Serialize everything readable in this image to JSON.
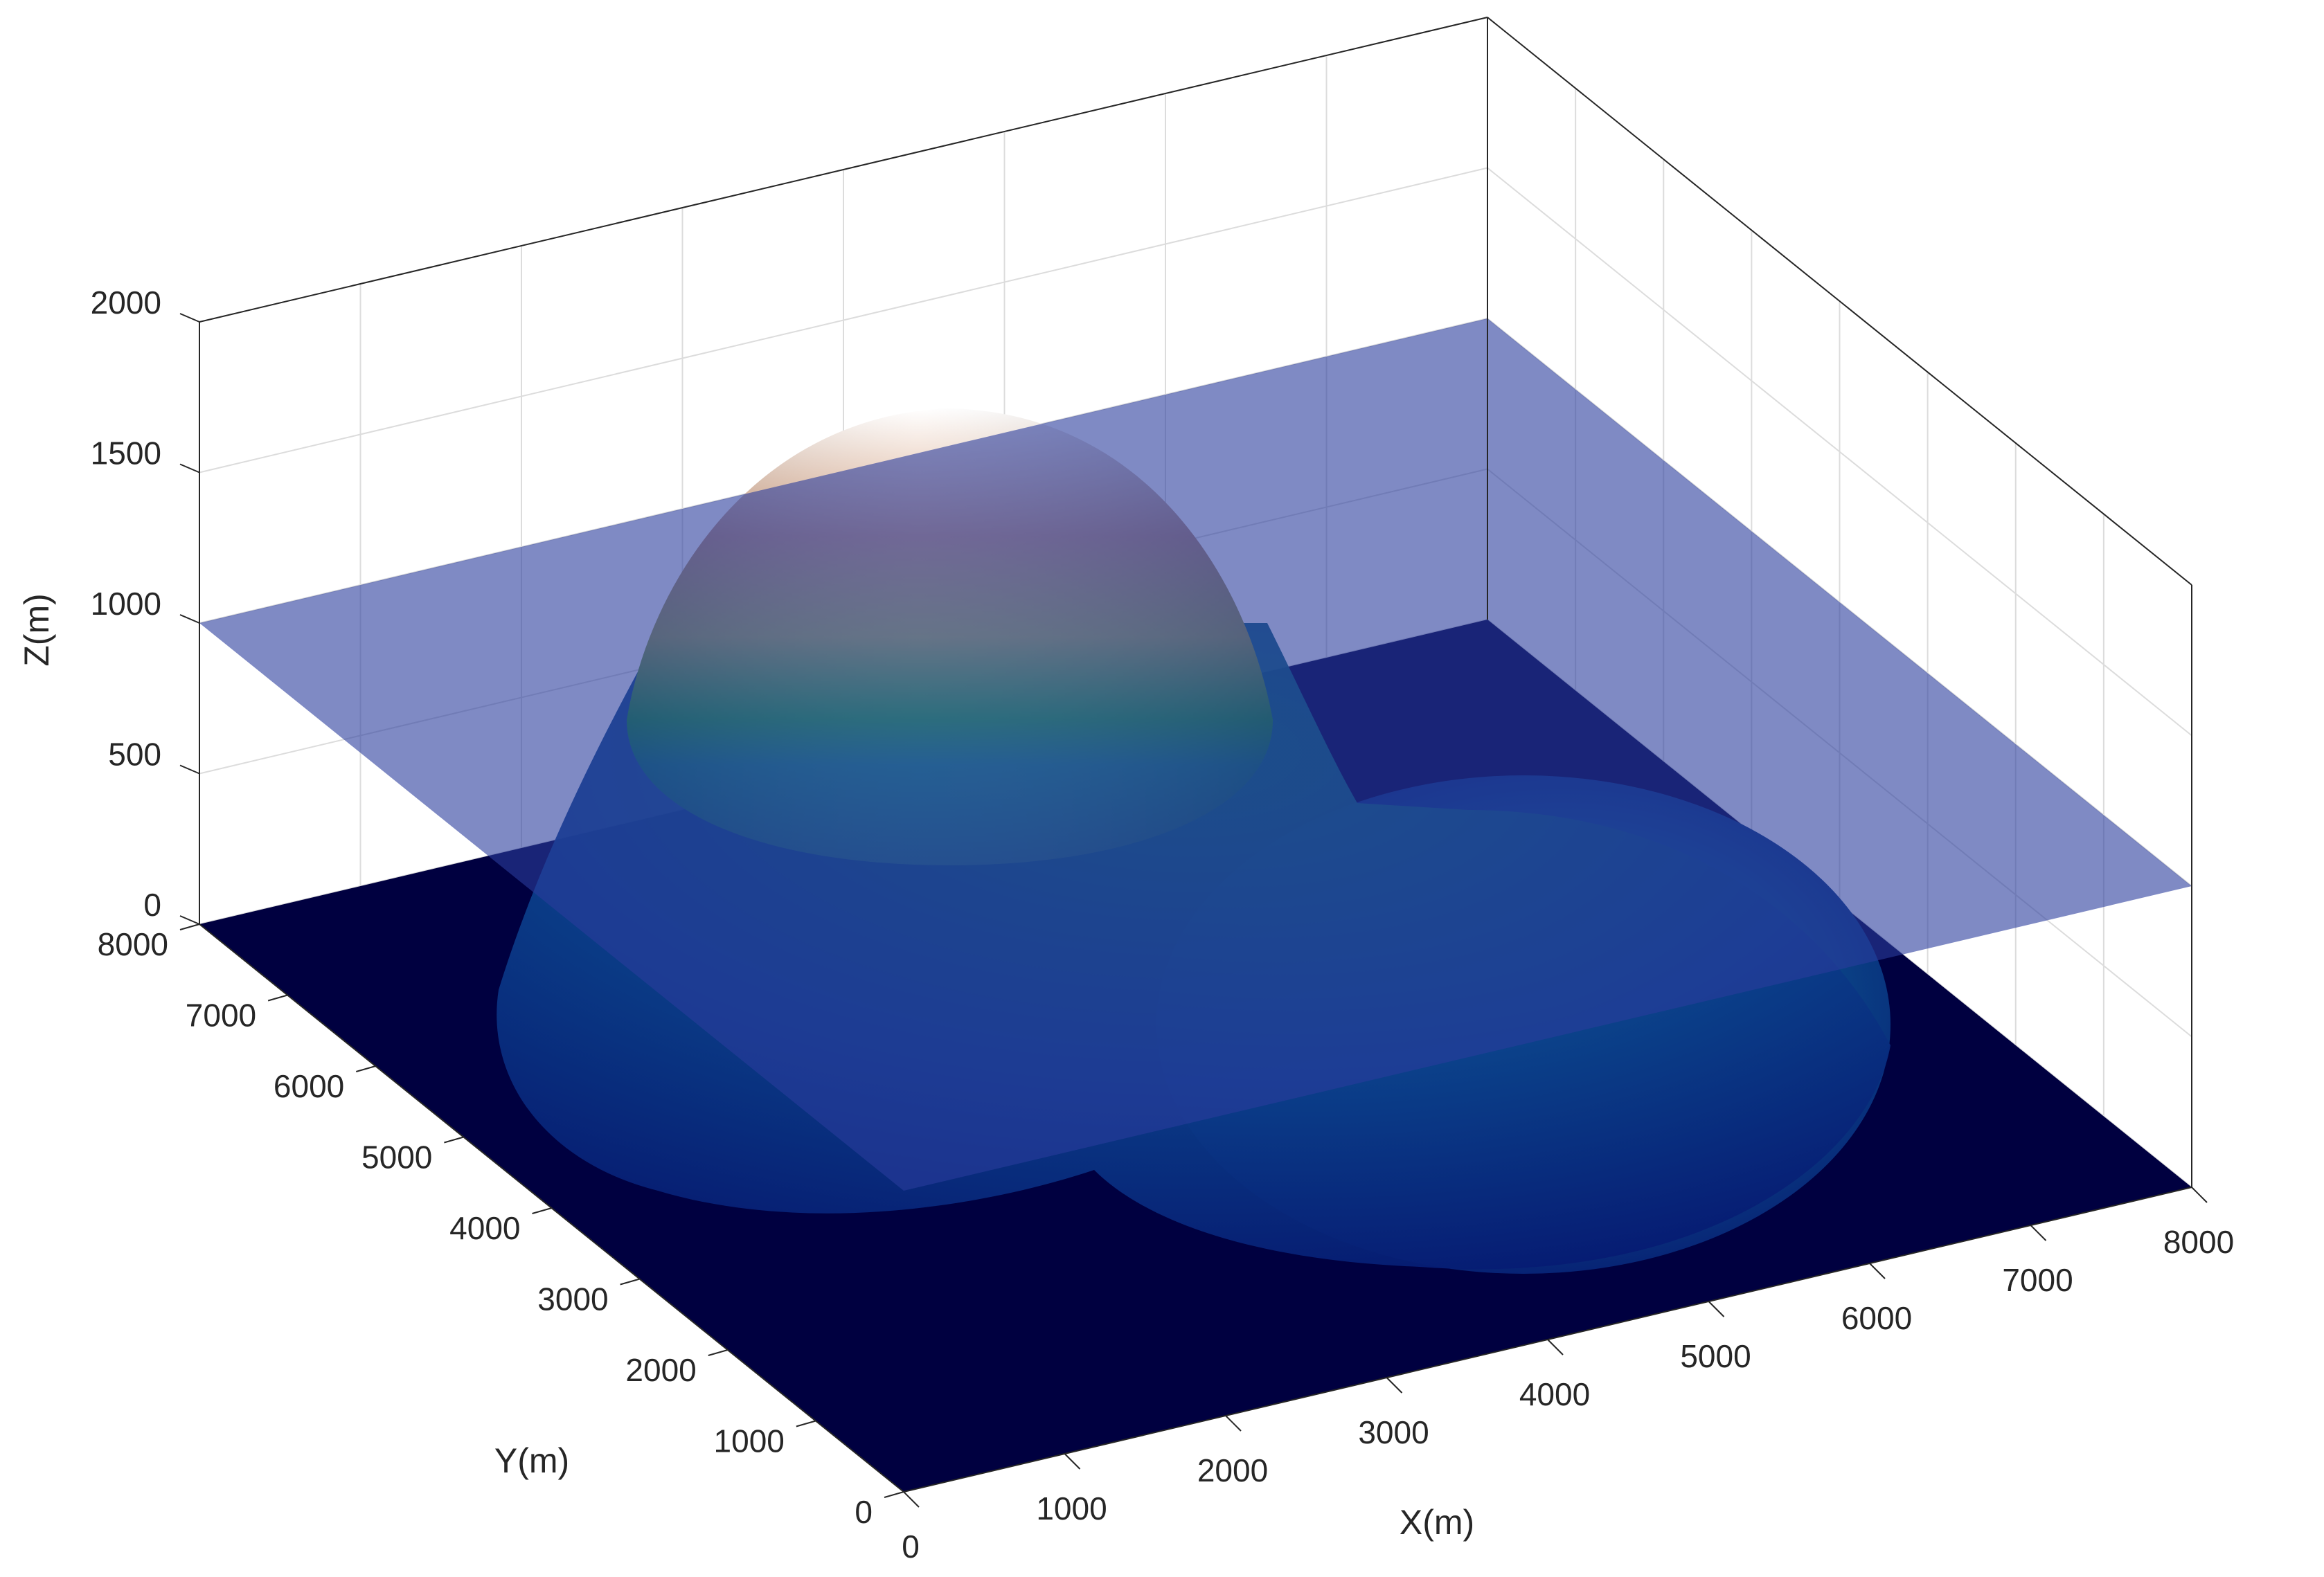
{
  "chart_data": {
    "type": "surface3d",
    "title": "",
    "axes": {
      "x": {
        "label": "X(m)",
        "range": [
          0,
          8000
        ],
        "ticks": [
          0,
          1000,
          2000,
          3000,
          4000,
          5000,
          6000,
          7000,
          8000
        ],
        "tick_labels": [
          "0",
          "1000",
          "2000",
          "3000",
          "4000",
          "5000",
          "6000",
          "7000",
          "8000"
        ]
      },
      "y": {
        "label": "Y(m)",
        "range": [
          0,
          8000
        ],
        "ticks": [
          0,
          1000,
          2000,
          3000,
          4000,
          5000,
          6000,
          7000,
          8000
        ],
        "tick_labels": [
          "0",
          "1000",
          "2000",
          "3000",
          "4000",
          "5000",
          "6000",
          "7000",
          "8000"
        ]
      },
      "z": {
        "label": "Z(m)",
        "range": [
          0,
          2000
        ],
        "ticks": [
          0,
          500,
          1000,
          1500,
          2000
        ],
        "tick_labels": [
          "0",
          "500",
          "1000",
          "1500",
          "2000"
        ]
      }
    },
    "grid": true,
    "surfaces": [
      {
        "kind": "terrain",
        "shape": "hill",
        "center": [
          2500,
          6000
        ],
        "peak_z": 1750,
        "radius": 3000
      },
      {
        "kind": "terrain",
        "shape": "hill",
        "center": [
          6000,
          3500
        ],
        "peak_z": 800,
        "radius": 3000
      },
      {
        "kind": "plane",
        "z": 1000
      }
    ],
    "colormap": [
      "#000040",
      "#0a2a9a",
      "#008080",
      "#1fb040",
      "#d4b870",
      "#ffffff"
    ],
    "plane_color": "#2a3c9c"
  }
}
